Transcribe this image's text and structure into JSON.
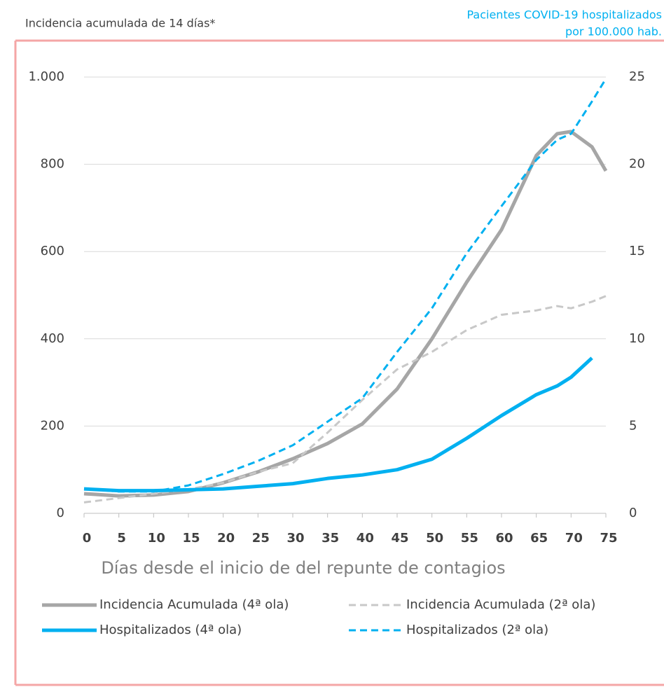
{
  "chart_data": {
    "type": "line",
    "ylabel": "Incidencia acumulada de 14 días*",
    "y2label": [
      "Pacientes COVID-19 hospitalizados",
      "por 100.000 hab."
    ],
    "xlabel": "Días desde el inicio de del repunte de contagios",
    "x": [
      0,
      5,
      10,
      15,
      20,
      25,
      30,
      35,
      40,
      45,
      50,
      55,
      60,
      65,
      68,
      70,
      73,
      75
    ],
    "xlim": [
      0,
      75
    ],
    "xticks": [
      0,
      5,
      10,
      15,
      20,
      25,
      30,
      35,
      40,
      45,
      50,
      55,
      60,
      65,
      70,
      75
    ],
    "ylim": [
      0,
      1000
    ],
    "yticks": [
      0,
      200,
      400,
      600,
      800,
      {
        "value": 1000,
        "label": "1.000"
      }
    ],
    "y2lim": [
      0,
      25
    ],
    "y2ticks": [
      0,
      5,
      10,
      15,
      20,
      25
    ],
    "grid": true,
    "series": [
      {
        "name": "Incidencia Acumulada (4ª ola)",
        "color": "#a6a6a6",
        "dashed": false,
        "values": [
          45,
          40,
          42,
          50,
          70,
          95,
          125,
          160,
          205,
          285,
          400,
          530,
          650,
          820,
          870,
          875,
          840,
          785
        ]
      },
      {
        "name": "Incidencia Acumulada (2ª ola)",
        "color": "#c8c8c8",
        "dashed": true,
        "values": [
          25,
          35,
          45,
          55,
          70,
          95,
          115,
          185,
          260,
          330,
          370,
          420,
          455,
          465,
          475,
          470,
          485,
          498
        ]
      },
      {
        "name": "Hospitalizados (4ª ola)",
        "color": "#00b0f0",
        "dashed": false,
        "axis": "y2",
        "values": [
          1.4,
          1.3,
          1.3,
          1.35,
          1.4,
          1.55,
          1.7,
          2.0,
          2.2,
          2.5,
          3.1,
          4.3,
          5.6,
          6.8,
          7.3,
          7.8,
          8.9,
          null
        ]
      },
      {
        "name": "Hospitalizados (2ª ola)",
        "color": "#00b0f0",
        "dashed": true,
        "axis": "y2",
        "values": [
          1.4,
          1.25,
          1.25,
          1.6,
          2.25,
          3.0,
          3.9,
          5.25,
          6.6,
          9.25,
          11.75,
          14.9,
          17.6,
          20.25,
          21.4,
          21.75,
          23.6,
          24.9
        ]
      }
    ]
  }
}
